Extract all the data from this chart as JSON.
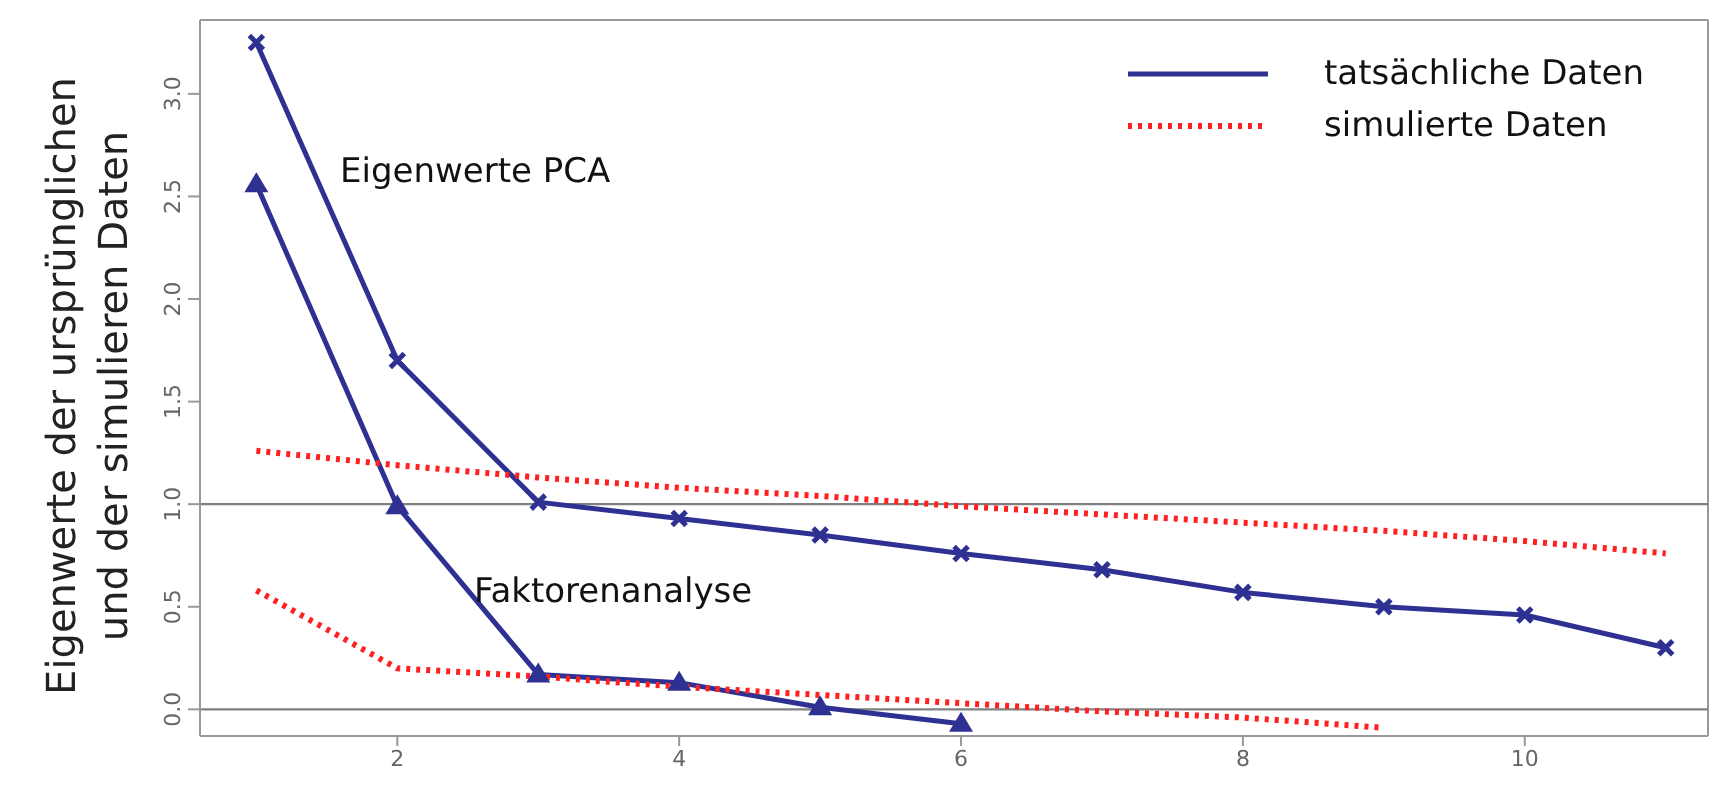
{
  "chart_data": {
    "type": "line",
    "ylabel": "Eigenwerte der ursprünglichen\nund der simulieren Daten",
    "x": [
      1,
      2,
      3,
      4,
      5,
      6,
      7,
      8,
      9,
      10,
      11
    ],
    "series": [
      {
        "name": "tatsächliche Daten",
        "color": "#2e3192",
        "values": [
          3.25,
          1.7,
          1.01,
          0.93,
          0.85,
          0.76,
          0.68,
          0.57,
          0.5,
          0.46,
          0.3
        ],
        "marker": "cross",
        "line_style": "solid"
      },
      {
        "color": "#2e3192",
        "values": [
          2.56,
          0.99,
          0.17,
          0.13,
          0.01,
          -0.07,
          null,
          null,
          null,
          null,
          null
        ],
        "marker": "triangle",
        "line_style": "solid"
      },
      {
        "name": "simulierte Daten",
        "color": "#ff2020",
        "values": [
          1.26,
          1.19,
          1.13,
          1.08,
          1.04,
          0.99,
          0.95,
          0.91,
          0.87,
          0.82,
          0.76
        ],
        "marker": "none",
        "line_style": "dotted"
      },
      {
        "color": "#ff2020",
        "values": [
          0.58,
          0.2,
          0.16,
          0.11,
          0.07,
          0.03,
          -0.01,
          -0.04,
          -0.09,
          null,
          null
        ],
        "marker": "none",
        "line_style": "dotted"
      }
    ],
    "xlim": [
      0.6,
      11.3
    ],
    "xticks": [
      2,
      4,
      6,
      8,
      10
    ],
    "ylim": [
      -0.13,
      3.36
    ],
    "yticks": [
      {
        "value": 0,
        "label": "0.0"
      },
      {
        "value": 0.5,
        "label": "0.5"
      },
      {
        "value": 1,
        "label": "1.0"
      },
      {
        "value": 1.5,
        "label": "1.5"
      },
      {
        "value": 2,
        "label": "2.0"
      },
      {
        "value": 2.5,
        "label": "2.5"
      },
      {
        "value": 3,
        "label": "3.0"
      }
    ],
    "ref_lines": [
      {
        "axis": "y",
        "value": 0,
        "color": "#808080"
      },
      {
        "axis": "y",
        "value": 1,
        "color": "#808080"
      }
    ],
    "annotations": [
      "Eigenwerte PCA",
      "Faktorenanalyse"
    ],
    "grid": false,
    "legend": "top right"
  }
}
